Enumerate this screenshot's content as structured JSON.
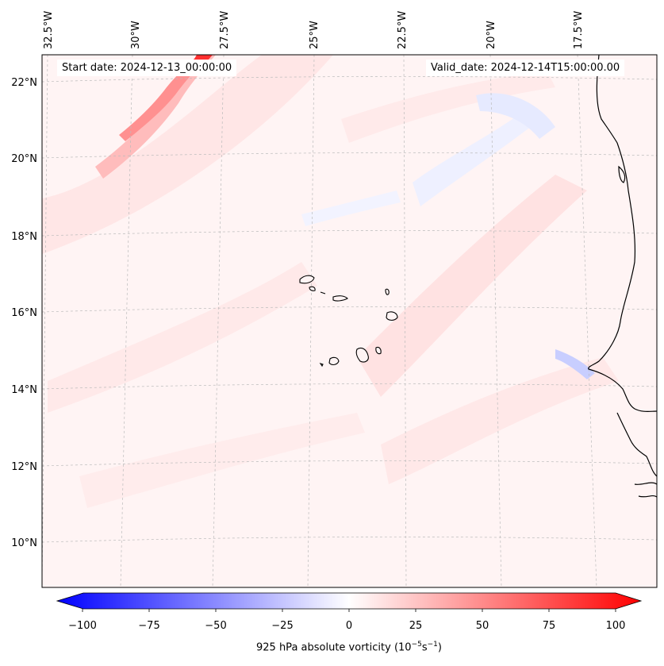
{
  "map": {
    "start_date": "Start date: 2024-12-13_00:00:00",
    "valid_date": "Valid_date: 2024-12-14T15:00:00.00",
    "lon_labels": [
      "32.5°W",
      "30°W",
      "27.5°W",
      "25°W",
      "22.5°W",
      "20°W",
      "17.5°W"
    ],
    "lat_labels": [
      "22°N",
      "20°N",
      "18°N",
      "16°N",
      "14°N",
      "12°N",
      "10°N"
    ],
    "variable": "925 hPa absolute vorticity",
    "colors": {
      "neg": "#0000ff",
      "pos": "#ff0000",
      "coast": "#000000",
      "grid": "#bbbbbb"
    }
  },
  "colorbar": {
    "ticks": [
      "−100",
      "−75",
      "−50",
      "−25",
      "0",
      "25",
      "50",
      "75",
      "100"
    ],
    "tick_values": [
      -100,
      -75,
      -50,
      -25,
      0,
      25,
      50,
      75,
      100
    ],
    "min": -100,
    "max": 100,
    "label_prefix": "925 hPa absolute vorticity (10",
    "label_exp1": "−5",
    "label_mid": "s",
    "label_exp2": "−1",
    "label_suffix": ")"
  }
}
